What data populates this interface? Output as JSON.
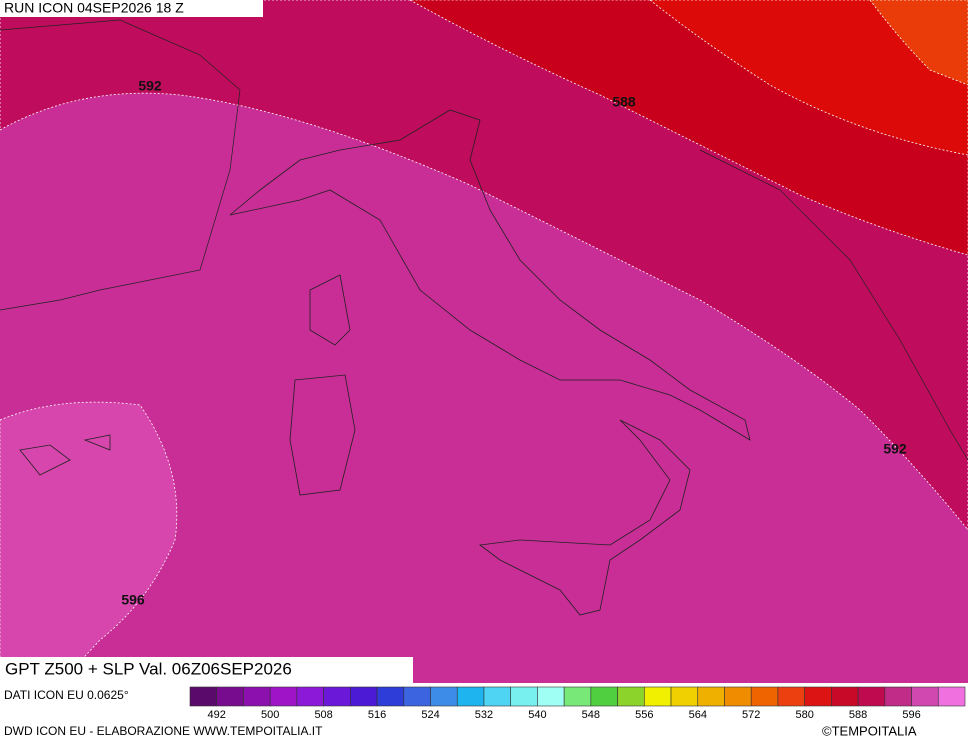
{
  "header": {
    "run": "RUN ICON 04SEP2026 18 Z"
  },
  "contour_labels": [
    "592",
    "588",
    "592",
    "596"
  ],
  "footer": {
    "title": "GPT Z500 + SLP Val. 06Z06SEP2026",
    "source": "DATI ICON EU 0.0625°",
    "credit": "DWD ICON EU - ELABORAZIONE WWW.TEMPOITALIA.IT",
    "copyright": "©TEMPOITALIA"
  },
  "legend": {
    "colors": [
      "#5a0a6a",
      "#780c8e",
      "#8c10ae",
      "#a014c8",
      "#8c18d8",
      "#6c18d8",
      "#4c1ad4",
      "#2e3cd8",
      "#3c64e0",
      "#3c8ce8",
      "#1eb4f0",
      "#50d4f4",
      "#78f0f0",
      "#a0fff4",
      "#78e878",
      "#50d040",
      "#8cd42c",
      "#f0f000",
      "#f0d000",
      "#f0b000",
      "#f08c00",
      "#f06400",
      "#ec4010",
      "#dc1414",
      "#c80a28",
      "#c00a50",
      "#c02c88",
      "#d048b0",
      "#f070e0"
    ],
    "labels": [
      "492",
      "500",
      "508",
      "516",
      "524",
      "532",
      "540",
      "548",
      "556",
      "564",
      "572",
      "580",
      "588",
      "596"
    ]
  }
}
